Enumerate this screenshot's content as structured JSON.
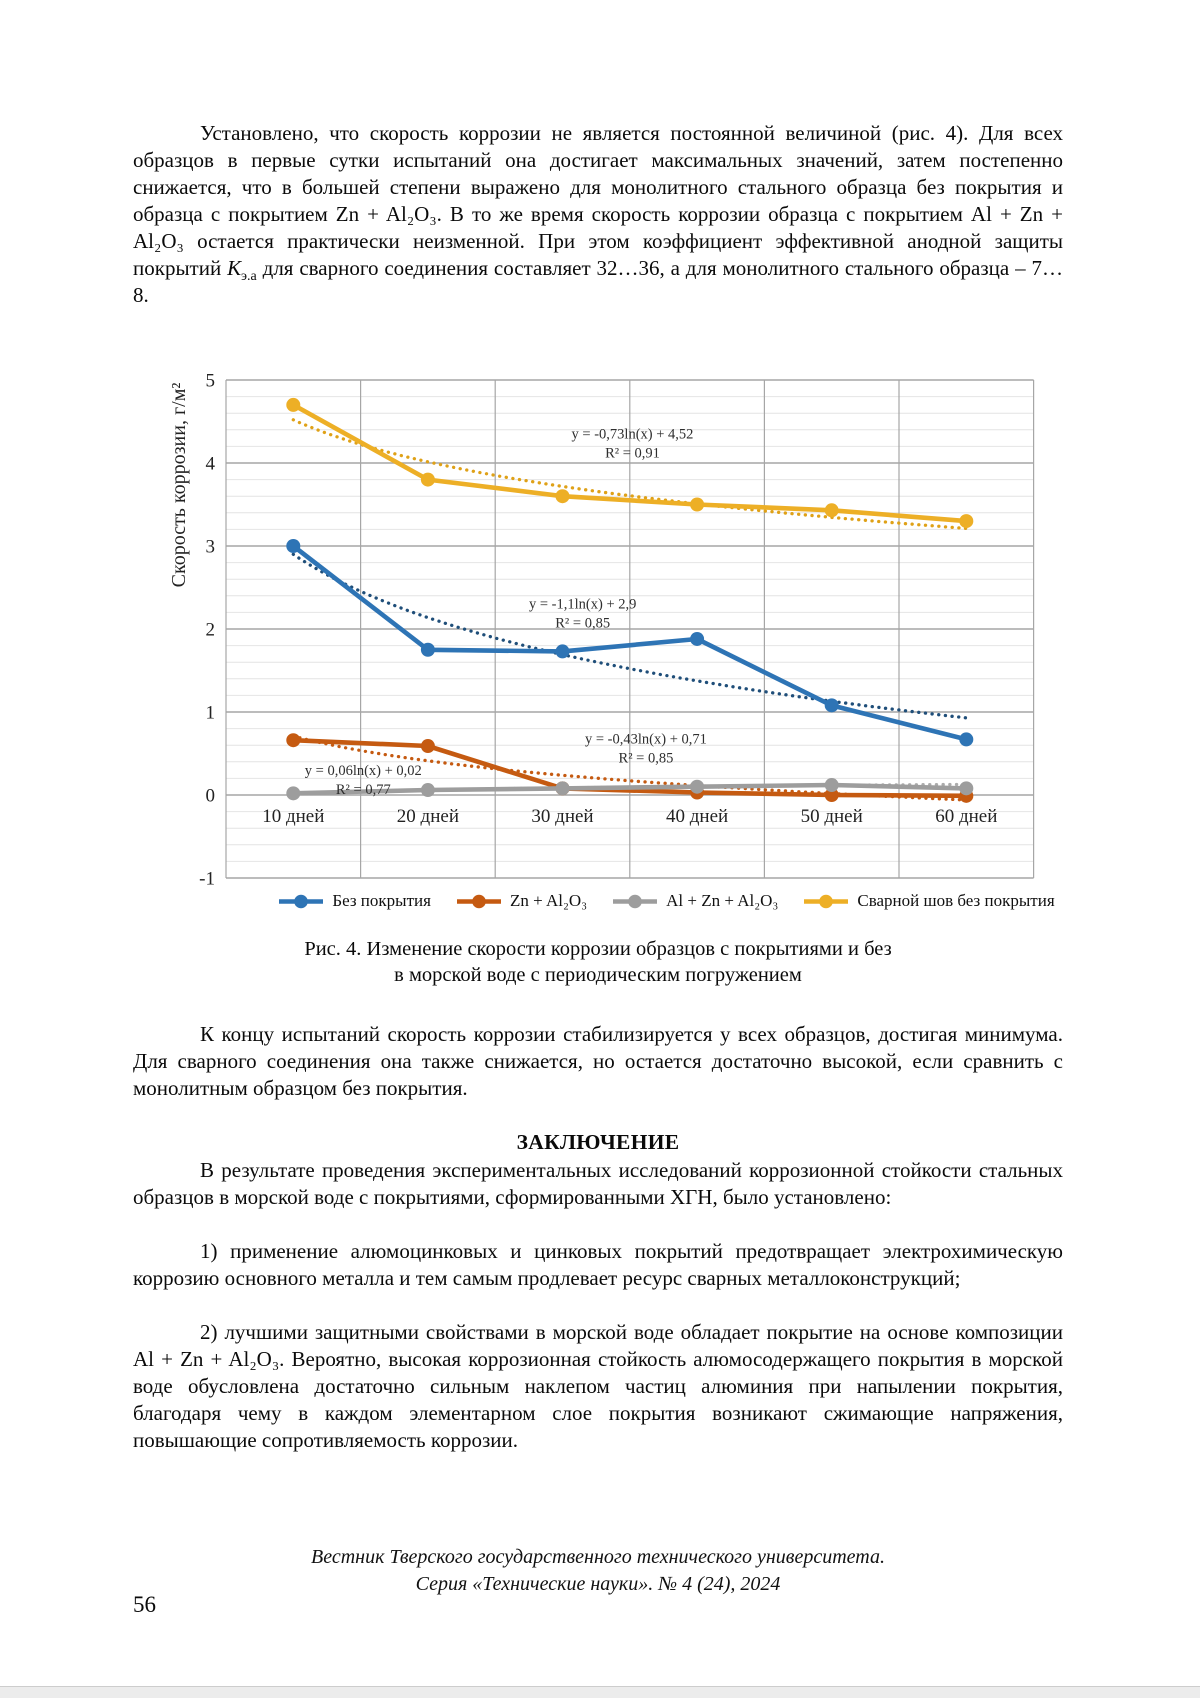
{
  "article": {
    "p1a": "Установлено, что скорость коррозии не является постоянной величиной (рис. 4). Для всех образцов в первые сутки испытаний она достигает максимальных значений, затем постепенно снижается, что в большей степени выражено для монолитного стального образца без покрытия и образца с покрытием Zn + Al₂O₃. В то же время скорость коррозии образца с покрытием Al + Zn + Al₂O₃ остается практически неизменной. При этом коэффициент эффективной анодной защиты покрытий ",
    "k_symbol": "К",
    "k_subscript": "э.а",
    "p1b": " для сварного соединения составляет 32…36, а для монолитного стального образца – 7…8.",
    "p2": "К концу испытаний скорость коррозии стабилизируется у всех образцов, достигая минимума. Для сварного соединения она также снижается, но остается достаточно высокой, если сравнить с монолитным образцом без покрытия.",
    "conclusion_heading": "ЗАКЛЮЧЕНИЕ",
    "p3": "В результате проведения экспериментальных исследований коррозионной стойкости стальных образцов в морской воде с покрытиями, сформированными ХГН, было установлено:",
    "item1": "1) применение алюмоцинковых и цинковых покрытий предотвращает электрохимическую коррозию основного металла и тем самым продлевает ресурс сварных металлоконструкций;",
    "item2": "2) лучшими защитными свойствами в морской воде обладает покрытие на основе композиции Al + Zn + Al₂O₃. Вероятно, высокая коррозионная стойкость алюмосодержащего покрытия в морской воде обусловлена достаточно сильным наклепом частиц алюминия при напылении покрытия, благодаря чему в каждом элементарном слое покрытия возникают сжимающие напряжения, повышающие сопротивляемость коррозии."
  },
  "figure": {
    "caption_line1": "Рис. 4. Изменение скорости коррозии образцов с покрытиями и без",
    "caption_line2": "в морской воде с периодическим погружением"
  },
  "footer": {
    "line1": "Вестник Тверского государственного технического университета.",
    "line2": "Серия «Технические науки». № 4 (24), 2024",
    "page_number": "56"
  },
  "chart_data": {
    "type": "line",
    "categories": [
      "10 дней",
      "20 дней",
      "30 дней",
      "40 дней",
      "50 дней",
      "60 дней"
    ],
    "xlabel": "",
    "ylabel": "Скорость коррозии, г/м²",
    "ylim": [
      -1,
      5
    ],
    "y_ticks": [
      5,
      4,
      3,
      2,
      1,
      0,
      -1
    ],
    "grid": "major and minor horizontal, vertical category borders",
    "legend_position": "bottom",
    "series": [
      {
        "name": "Без покрытия",
        "color": "#2E74B5",
        "values": [
          3.0,
          1.75,
          1.73,
          1.88,
          1.08,
          0.67
        ],
        "trendline": {
          "eq": "y = -1,1ln(x) + 2,9",
          "r2": "R² = 0,85",
          "a": -1.1,
          "b": 2.9,
          "color": "#1F4E79",
          "label_cx": 3.15,
          "label_cy": 2.2
        }
      },
      {
        "name": "Zn + Al₂O₃",
        "color": "#C55A11",
        "values": [
          0.66,
          0.59,
          0.08,
          0.03,
          0.0,
          -0.01
        ],
        "trendline": {
          "eq": "y = -0,43ln(x) + 0,71",
          "r2": "R² = 0,85",
          "a": -0.43,
          "b": 0.71,
          "color": "#C55A11",
          "label_cx": 3.62,
          "label_cy": 0.57
        }
      },
      {
        "name": "Al + Zn + Al₂O₃",
        "color": "#9D9D9D",
        "values": [
          0.02,
          0.06,
          0.08,
          0.1,
          0.12,
          0.08
        ],
        "trendline": {
          "eq": "y = 0,06ln(x) + 0,02",
          "r2": "R² = 0,77",
          "a": 0.06,
          "b": 0.02,
          "color": "#ABABAB",
          "label_cx": 1.52,
          "label_cy": 0.19
        }
      },
      {
        "name": "Сварной шов без покрытия",
        "color": "#EDAF26",
        "values": [
          4.7,
          3.8,
          3.6,
          3.5,
          3.43,
          3.3
        ],
        "trendline": {
          "eq": "y = -0,73ln(x) + 4,52",
          "r2": "R² = 0,91",
          "a": -0.73,
          "b": 4.52,
          "color": "#DFA117",
          "label_cx": 3.52,
          "label_cy": 4.25
        }
      }
    ]
  }
}
